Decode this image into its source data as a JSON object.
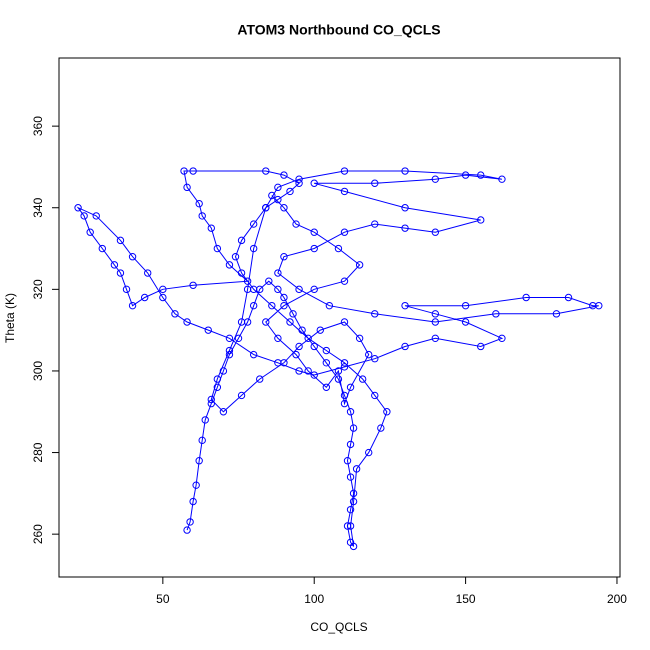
{
  "chart_data": {
    "type": "scatter-line",
    "title": "ATOM3 Northbound CO_QCLS",
    "x_label": "CO_QCLS",
    "y_label": "Theta (K)",
    "color": "#0000ff",
    "xlim": [
      15.7,
      201
    ],
    "ylim": [
      249.5,
      376.7
    ],
    "xticks": [
      50,
      100,
      150,
      200
    ],
    "yticks": [
      260,
      280,
      300,
      320,
      340,
      360
    ],
    "x": [
      58,
      59,
      60,
      61,
      62,
      63,
      64,
      66,
      68,
      70,
      72,
      75,
      78,
      80,
      82,
      85,
      88,
      90,
      93,
      96,
      100,
      104,
      108,
      110,
      112,
      113,
      112,
      111,
      112,
      113,
      112,
      111,
      112,
      113,
      112,
      113,
      114,
      118,
      122,
      124,
      120,
      116,
      110,
      104,
      98,
      92,
      86,
      80,
      76,
      74,
      76,
      80,
      84,
      88,
      92,
      95,
      90,
      84,
      60,
      57,
      58,
      62,
      63,
      66,
      68,
      72,
      78,
      60,
      50,
      44,
      40,
      38,
      36,
      34,
      30,
      26,
      24,
      22,
      28,
      36,
      40,
      45,
      50,
      54,
      58,
      65,
      72,
      80,
      88,
      95,
      100,
      110,
      120,
      130,
      140,
      155,
      162,
      150,
      140,
      130,
      150,
      170,
      184,
      192,
      194,
      180,
      160,
      140,
      120,
      105,
      95,
      88,
      90,
      100,
      110,
      120,
      130,
      140,
      155,
      130,
      110,
      100,
      120,
      140,
      150,
      162,
      155,
      130,
      110,
      95,
      88,
      84,
      80,
      78,
      76,
      72,
      68,
      66,
      70,
      76,
      82,
      90,
      95,
      102,
      110,
      115,
      118,
      112,
      110,
      108,
      104,
      98,
      94,
      88,
      84,
      90,
      100,
      110,
      115,
      108,
      100,
      94,
      90,
      86
    ],
    "values": [
      261,
      263,
      268,
      272,
      278,
      283,
      288,
      292,
      296,
      300,
      304,
      308,
      312,
      316,
      320,
      322,
      320,
      318,
      314,
      310,
      306,
      302,
      298,
      294,
      290,
      286,
      282,
      278,
      274,
      270,
      266,
      262,
      258,
      257,
      262,
      268,
      276,
      280,
      286,
      290,
      294,
      298,
      302,
      305,
      308,
      312,
      316,
      320,
      324,
      328,
      332,
      336,
      340,
      342,
      344,
      346,
      348,
      349,
      349,
      349,
      345,
      341,
      338,
      335,
      330,
      326,
      322,
      321,
      320,
      318,
      316,
      320,
      324,
      326,
      330,
      334,
      338,
      340,
      338,
      332,
      328,
      324,
      318,
      314,
      312,
      310,
      308,
      304,
      302,
      300,
      299,
      301,
      303,
      306,
      308,
      306,
      308,
      312,
      314,
      316,
      316,
      318,
      318,
      316,
      316,
      314,
      314,
      312,
      314,
      316,
      320,
      324,
      328,
      330,
      334,
      336,
      335,
      334,
      337,
      340,
      344,
      346,
      346,
      347,
      348,
      347,
      348,
      349,
      349,
      347,
      345,
      340,
      330,
      320,
      312,
      305,
      298,
      293,
      290,
      294,
      298,
      302,
      306,
      310,
      312,
      308,
      304,
      296,
      292,
      300,
      296,
      300,
      304,
      308,
      312,
      316,
      320,
      322,
      326,
      330,
      334,
      336,
      340,
      343
    ]
  }
}
